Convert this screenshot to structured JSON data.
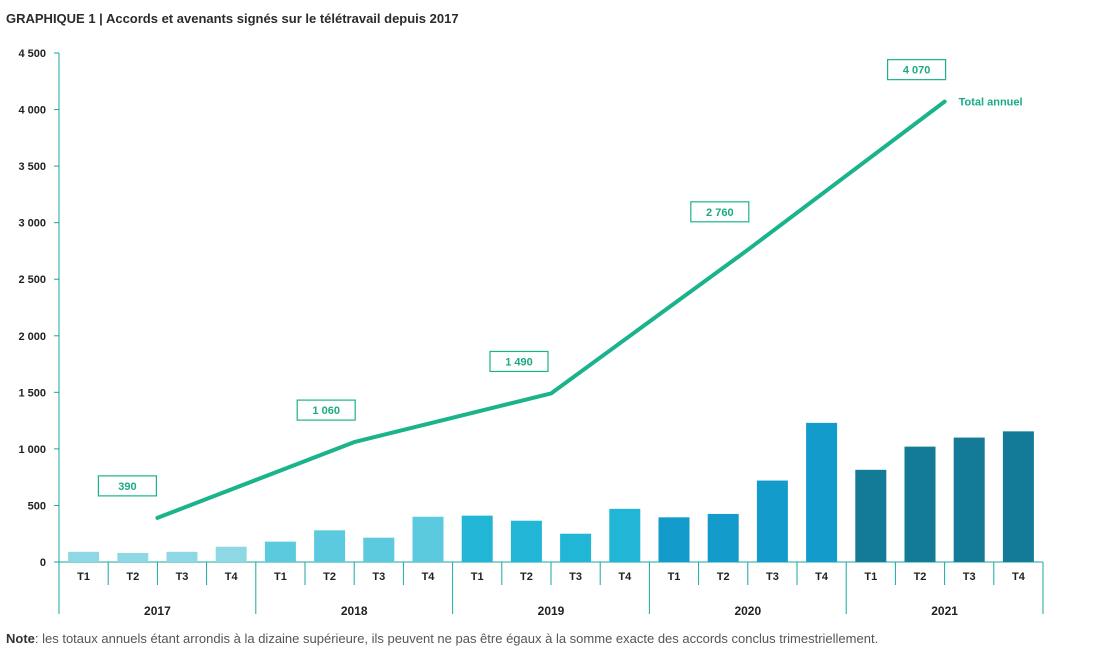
{
  "title": "GRAPHIQUE 1 | Accords et avenants signés sur le télétravail depuis 2017",
  "note": {
    "label": "Note",
    "text": ": les totaux annuels étant arrondis à la dizaine supérieure, ils peuvent ne pas être égaux à la somme exacte des accords conclus trimestriellement."
  },
  "colors": {
    "line": "#1bb38b",
    "year_bars": [
      "#8ed8e6",
      "#5bc9de",
      "#22b6d6",
      "#139ccb",
      "#137a97"
    ],
    "axis": "#1aa7a0"
  },
  "chart_data": {
    "type": "bar",
    "ylim": [
      0,
      4500
    ],
    "yticks": [
      0,
      500,
      1000,
      1500,
      2000,
      2500,
      3000,
      3500,
      4000,
      4500
    ],
    "ytick_labels": [
      "0",
      "500",
      "1 000",
      "1 500",
      "2 000",
      "2 500",
      "3 000",
      "3 500",
      "4 000",
      "4 500"
    ],
    "years": [
      "2017",
      "2018",
      "2019",
      "2020",
      "2021"
    ],
    "quarters": [
      "T1",
      "T2",
      "T3",
      "T4"
    ],
    "quarterly_values": [
      [
        90,
        80,
        90,
        135
      ],
      [
        180,
        280,
        215,
        400
      ],
      [
        410,
        365,
        250,
        470
      ],
      [
        395,
        425,
        720,
        1230
      ],
      [
        815,
        1020,
        1100,
        1155
      ]
    ],
    "annual_series": {
      "name": "Total annuel",
      "values": [
        390,
        1060,
        1490,
        2760,
        4070
      ],
      "labels": [
        "390",
        "1 060",
        "1 490",
        "2 760",
        "4 070"
      ]
    }
  }
}
